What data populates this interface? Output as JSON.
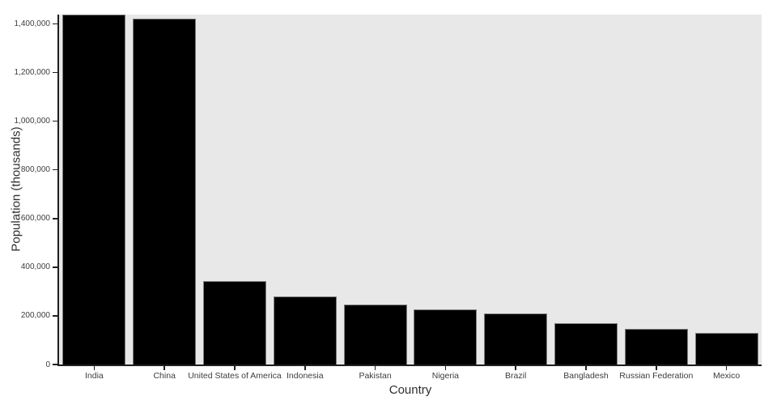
{
  "chart_data": {
    "type": "bar",
    "title": "",
    "xlabel": "Country",
    "ylabel": "Population (thousands)",
    "categories": [
      "India",
      "China",
      "United States of America",
      "Indonesia",
      "Pakistan",
      "Nigeria",
      "Brazil",
      "Bangladesh",
      "Russian Federation",
      "Mexico"
    ],
    "values": [
      1438070,
      1422585,
      343477,
      281190,
      247504,
      227883,
      211141,
      171467,
      145440,
      129739
    ],
    "ylim": [
      0,
      1438070
    ],
    "y_ticks": [
      "0",
      "200,000",
      "400,000",
      "600,000",
      "800,000",
      "1,000,000",
      "1,200,000",
      "1,400,000"
    ],
    "grid": false,
    "legend": null,
    "bar_width_fraction": 0.9,
    "colors": {
      "bar": "#000000",
      "bar_edge": "#7d7d7d",
      "plot_background": "#e8e8e8",
      "page_background": "#ffffff",
      "axis_line": "#1f1f1f",
      "tick_text": "#3d3d3d",
      "axis_title_text": "#2e2e2e"
    }
  }
}
